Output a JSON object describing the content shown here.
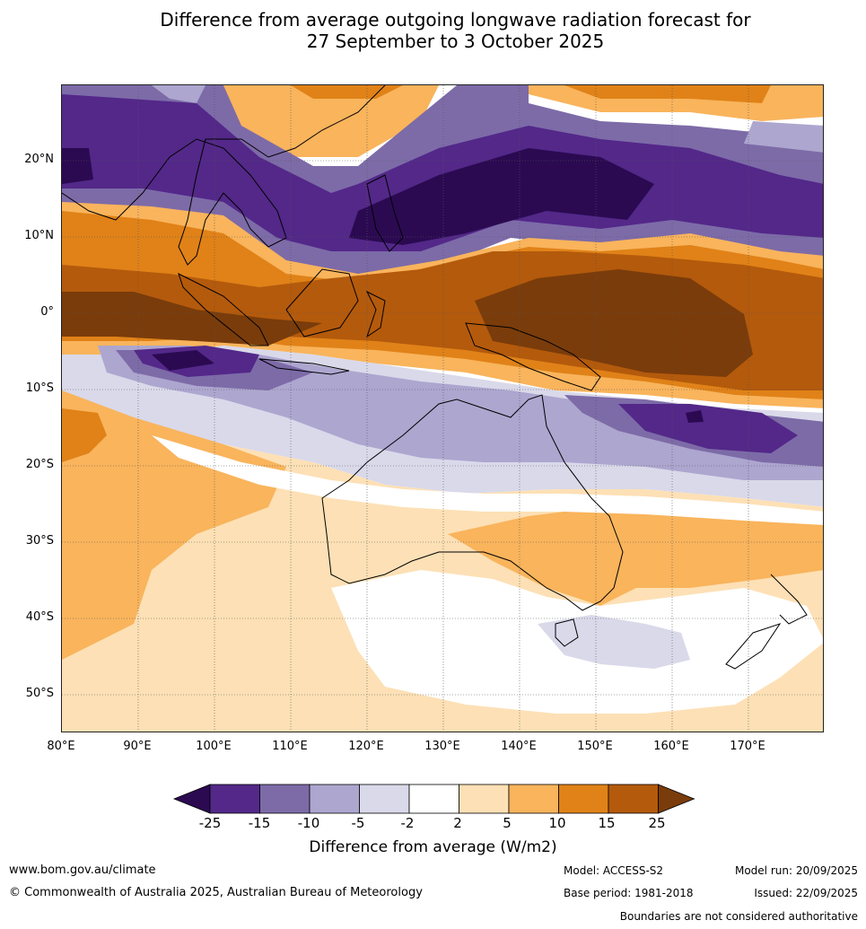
{
  "title": {
    "line1": "Difference from average outgoing longwave radiation forecast for",
    "line2": "27 September to 3 October 2025"
  },
  "map": {
    "lat_labels": [
      "20°N",
      "10°N",
      "0°",
      "10°S",
      "20°S",
      "30°S",
      "40°S",
      "50°S"
    ],
    "lon_labels": [
      "80°E",
      "90°E",
      "100°E",
      "110°E",
      "120°E",
      "130°E",
      "140°E",
      "150°E",
      "160°E",
      "170°E"
    ]
  },
  "colorbar": {
    "ticks": [
      "-25",
      "-15",
      "-10",
      "-5",
      "-2",
      "2",
      "5",
      "10",
      "15",
      "25"
    ],
    "colors": [
      "#2b0a52",
      "#532889",
      "#7d6ba8",
      "#ada6cf",
      "#d9d9ea",
      "#ffffff",
      "#fde0b5",
      "#f9b45c",
      "#e08218",
      "#b45a0c",
      "#7a3c0b"
    ],
    "label": "Difference from average (W/m2)"
  },
  "footer": {
    "website": "www.bom.gov.au/climate",
    "copyright": "© Commonwealth of Australia 2025, Australian Bureau of Meteorology",
    "model": "Model: ACCESS-S2",
    "base_period": "Base period: 1981-2018",
    "model_run": "Model run: 20/09/2025",
    "issued": "Issued: 22/09/2025",
    "boundaries_note": "Boundaries are not considered authoritative"
  }
}
